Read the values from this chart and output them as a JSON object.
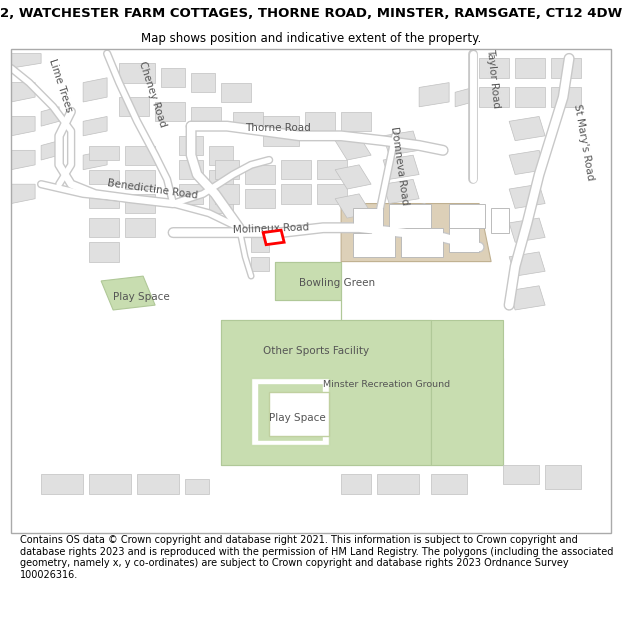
{
  "title_line1": "2, WATCHESTER FARM COTTAGES, THORNE ROAD, MINSTER, RAMSGATE, CT12 4DW",
  "title_line2": "Map shows position and indicative extent of the property.",
  "footer": "Contains OS data © Crown copyright and database right 2021. This information is subject to Crown copyright and database rights 2023 and is reproduced with the permission of HM Land Registry. The polygons (including the associated geometry, namely x, y co-ordinates) are subject to Crown copyright and database rights 2023 Ordnance Survey 100026316.",
  "bg_color": "#ffffff",
  "map_bg": "#ffffff",
  "road_color": "#ffffff",
  "road_outline": "#c8c8c8",
  "building_color": "#e0e0e0",
  "building_outline": "#c0c0c0",
  "green_color": "#c8ddb0",
  "green_outline": "#b0c898",
  "beige_color": "#ddd0b8",
  "highlight_color": "#ff0000",
  "title_fontsize": 9.5,
  "subtitle_fontsize": 8.5,
  "footer_fontsize": 7.0,
  "label_fontsize": 7.5
}
